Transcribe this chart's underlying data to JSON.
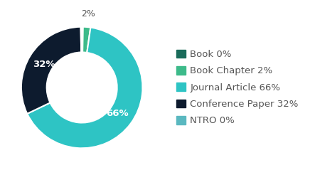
{
  "labels": [
    "Book",
    "Book Chapter",
    "Journal Article",
    "Conference Paper",
    "NTRO"
  ],
  "values": [
    0.3,
    2,
    66,
    32,
    0.3
  ],
  "display_pcts": [
    "0%",
    "2%",
    "66%",
    "32%",
    "0%"
  ],
  "colors": [
    "#1a6b5a",
    "#3dba8a",
    "#2ec4c4",
    "#0d1b2e",
    "#5ab8c0"
  ],
  "legend_labels": [
    "Book 0%",
    "Book Chapter 2%",
    "Journal Article 66%",
    "Conference Paper 32%",
    "NTRO 0%"
  ],
  "bg_color": "#ffffff",
  "text_color": "#555555",
  "font_size": 9.5,
  "donut_width": 0.42,
  "wedge_linewidth": 1.5
}
